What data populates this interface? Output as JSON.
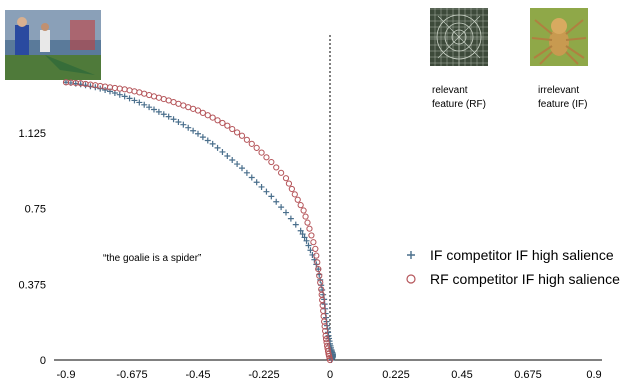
{
  "chart_data": {
    "type": "scatter",
    "xlim": [
      -0.9,
      0.9
    ],
    "ylim": [
      0,
      1.5
    ],
    "x_ticks": [
      "-0.9",
      "-0.675",
      "-0.45",
      "-0.225",
      "0",
      "0.225",
      "0.45",
      "0.675",
      "0.9"
    ],
    "y_ticks": [
      "0",
      "0.375",
      "0.75",
      "1.125"
    ],
    "annotation": "“the goalie is a spider”",
    "reference_line_x": 0,
    "series": [
      {
        "name": "IF competitor IF high salience",
        "marker": "plus",
        "color": "#4a6f8c",
        "x": [
          -0.9,
          -0.85,
          -0.8,
          -0.75,
          -0.7,
          -0.65,
          -0.6,
          -0.55,
          -0.5,
          -0.45,
          -0.4,
          -0.35,
          -0.3,
          -0.25,
          -0.2,
          -0.15,
          -0.1,
          -0.08,
          -0.06,
          -0.04,
          -0.03,
          -0.02,
          -0.015,
          -0.01,
          -0.005,
          0.0,
          0.005,
          0.01,
          0.01,
          0.005
        ],
        "y": [
          1.375,
          1.365,
          1.35,
          1.33,
          1.305,
          1.275,
          1.24,
          1.205,
          1.165,
          1.12,
          1.07,
          1.01,
          0.95,
          0.88,
          0.81,
          0.73,
          0.64,
          0.59,
          0.52,
          0.45,
          0.37,
          0.3,
          0.23,
          0.17,
          0.12,
          0.08,
          0.05,
          0.03,
          0.015,
          0.0
        ]
      },
      {
        "name": "RF competitor IF high salience",
        "marker": "circle",
        "color": "#b5555a",
        "x": [
          -0.9,
          -0.85,
          -0.8,
          -0.75,
          -0.7,
          -0.65,
          -0.6,
          -0.55,
          -0.5,
          -0.45,
          -0.4,
          -0.35,
          -0.3,
          -0.25,
          -0.2,
          -0.15,
          -0.12,
          -0.09,
          -0.07,
          -0.05,
          -0.04,
          -0.03,
          -0.025,
          -0.02,
          -0.015,
          -0.01,
          -0.005,
          0.0
        ],
        "y": [
          1.375,
          1.37,
          1.36,
          1.35,
          1.34,
          1.325,
          1.305,
          1.285,
          1.26,
          1.235,
          1.2,
          1.16,
          1.11,
          1.05,
          0.98,
          0.9,
          0.82,
          0.74,
          0.65,
          0.55,
          0.45,
          0.35,
          0.27,
          0.19,
          0.12,
          0.07,
          0.03,
          0.0
        ]
      }
    ]
  },
  "images": {
    "spider_web": {
      "caption": "relevant\nfeature (RF)",
      "line1": "relevant",
      "line2": "feature (RF)"
    },
    "spider": {
      "caption": "irrelevant\nfeature (IF)",
      "line1": "irrelevant",
      "line2": "feature (IF)"
    },
    "goalie_photo": {
      "icon": "goalie-photo"
    }
  }
}
